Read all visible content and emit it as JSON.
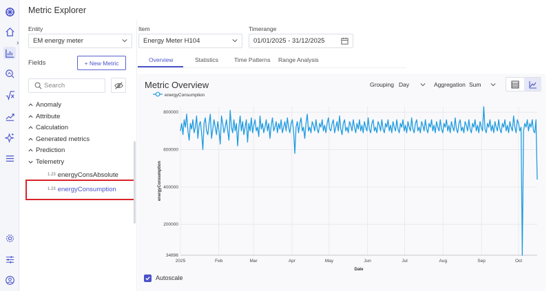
{
  "app": {
    "title": "Metric Explorer"
  },
  "rail": {
    "icons": [
      "app-logo-icon",
      "home-icon",
      "chart-icon",
      "search-analytics-icon",
      "sqrt-icon",
      "trend-icon",
      "sparkle-icon",
      "menu-icon",
      "gear-icon",
      "sliders-icon",
      "user-icon"
    ]
  },
  "filters": {
    "entity": {
      "label": "Entity",
      "value": "EM energy meter"
    },
    "item": {
      "label": "Item",
      "value": "Energy Meter H104"
    },
    "timerange": {
      "label": "Timerange",
      "value": "01/01/2025 - 31/12/2025"
    }
  },
  "fields": {
    "label": "Fields",
    "new_metric_label": "+ New Metric",
    "search_placeholder": "Search",
    "groups": [
      "Anomaly",
      "Attribute",
      "Calculation",
      "Generated metrics",
      "Prediction",
      "Telemetry"
    ],
    "telemetry_items": [
      {
        "badge": "1.23",
        "label": "energyConsAbsolute"
      },
      {
        "badge": "1.23",
        "label": "energyConsumption"
      }
    ]
  },
  "tabs": [
    "Overview",
    "Statistics",
    "Time Patterns",
    "Range Analysis"
  ],
  "chart_controls": {
    "title": "Metric Overview",
    "grouping_label": "Grouping",
    "grouping_value": "Day",
    "aggregation_label": "Aggregation",
    "aggregation_value": "Sum"
  },
  "autoscale": {
    "label": "Autoscale",
    "checked": true
  },
  "colors": {
    "accent": "#4b52c9",
    "series": "#1f9be0",
    "highlight": "#d9232a"
  },
  "chart_data": {
    "type": "line",
    "title": "",
    "xlabel": "Date",
    "ylabel": "energyConsumption",
    "series_name": "energyConsumption",
    "legend": "top-left",
    "grid": true,
    "ylim": [
      34896,
      830000
    ],
    "yticks": [
      34896,
      200000,
      400000,
      600000,
      800000
    ],
    "ytick_labels": [
      "34896",
      "200000",
      "400000",
      "600000",
      "800000"
    ],
    "xticks": [
      "2025",
      "Feb",
      "Mar",
      "Apr",
      "May",
      "Jun",
      "Jul",
      "Aug",
      "Sep",
      "Oct"
    ],
    "x_start": "2025-01-01",
    "x_end": "2025-10-16",
    "values": [
      700000,
      740000,
      680000,
      760000,
      720000,
      790000,
      700000,
      650000,
      740000,
      710000,
      760000,
      690000,
      720000,
      780000,
      660000,
      730000,
      750000,
      690000,
      600000,
      740000,
      770000,
      700000,
      680000,
      740000,
      790000,
      660000,
      710000,
      760000,
      720000,
      680000,
      750000,
      700000,
      630000,
      780000,
      740000,
      690000,
      720000,
      760000,
      700000,
      650000,
      810000,
      720000,
      690000,
      760000,
      700000,
      740000,
      620000,
      720000,
      780000,
      700000,
      750000,
      680000,
      720000,
      760000,
      640000,
      740000,
      700000,
      770000,
      690000,
      730000,
      760000,
      700000,
      720000,
      670000,
      780000,
      710000,
      740000,
      690000,
      720000,
      760000,
      700000,
      740000,
      660000,
      730000,
      770000,
      700000,
      720000,
      750000,
      690000,
      740000,
      710000,
      760000,
      690000,
      720000,
      750000,
      700000,
      770000,
      720000,
      690000,
      740000,
      760000,
      700000,
      580000,
      720000,
      750000,
      690000,
      740000,
      770000,
      700000,
      720000,
      660000,
      740000,
      790000,
      700000,
      720000,
      690000,
      750000,
      730000,
      700000,
      760000,
      710000,
      690000,
      740000,
      720000,
      760000,
      700000,
      730000,
      690000,
      740000,
      770000,
      710000,
      700000,
      740000,
      760000,
      690000,
      720000,
      750000,
      700000,
      780000,
      710000,
      680000,
      740000,
      760000,
      700000,
      720000,
      690000,
      750000,
      730000,
      700000,
      760000,
      720000,
      690000,
      740000,
      710000,
      760000,
      700000,
      730000,
      690000,
      750000,
      720000,
      700000,
      770000,
      710000,
      690000,
      740000,
      760000,
      700000,
      720000,
      690000,
      750000,
      730000,
      700000,
      760000,
      710000,
      690000,
      740000,
      720000,
      760000,
      700000,
      730000,
      690000,
      750000,
      720000,
      700000,
      760000,
      710000,
      690000,
      740000,
      720000,
      760000,
      700000,
      730000,
      690000,
      750000,
      720000,
      700000,
      770000,
      710000,
      690000,
      740000,
      760000,
      700000,
      720000,
      690000,
      750000,
      730000,
      700000,
      760000,
      710000,
      690000,
      740000,
      720000,
      760000,
      700000,
      730000,
      690000,
      750000,
      720000,
      700000,
      760000,
      710000,
      690000,
      740000,
      720000,
      760000,
      700000,
      730000,
      690000,
      750000,
      720000,
      700000,
      770000,
      710000,
      690000,
      740000,
      760000,
      700000,
      720000,
      690000,
      750000,
      730000,
      700000,
      760000,
      710000,
      690000,
      740000,
      720000,
      760000,
      700000,
      730000,
      690000,
      750000,
      720000,
      700000,
      830000,
      710000,
      690000,
      740000,
      720000,
      760000,
      700000,
      730000,
      690000,
      750000,
      720000,
      700000,
      760000,
      710000,
      690000,
      740000,
      720000,
      760000,
      700000,
      730000,
      690000,
      750000,
      720000,
      700000,
      780000,
      720000,
      690000,
      760000,
      740000,
      700000,
      720000,
      34896,
      700000,
      740000,
      720000,
      760000,
      700000,
      740000,
      720000,
      760000,
      700000,
      690000,
      760000,
      440000
    ]
  }
}
